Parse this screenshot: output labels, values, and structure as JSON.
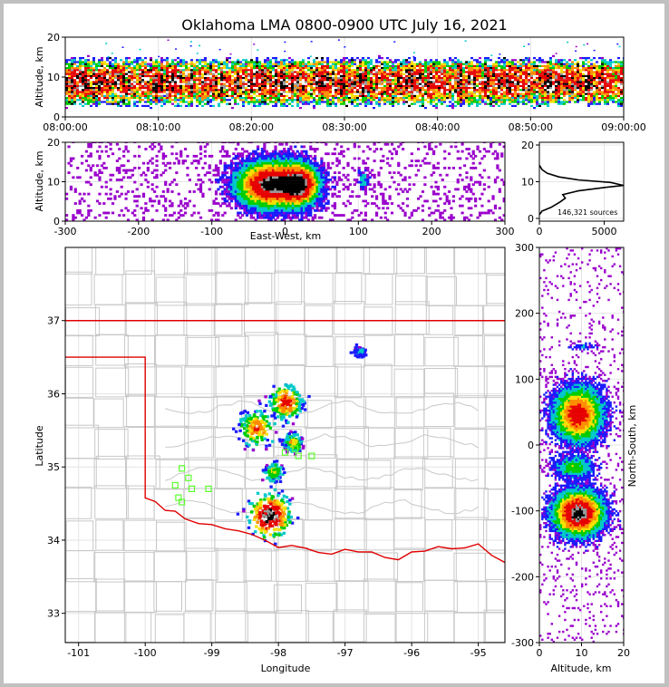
{
  "title": "Oklahoma LMA 0800-0900 UTC July 16, 2021",
  "chart_data": [
    {
      "type": "heatmap",
      "name": "time-altitude",
      "ylabel": "Altitude, km",
      "ylim": [
        0,
        20
      ],
      "yticks": [
        0,
        10,
        20
      ],
      "xticks": [
        "08:00:00",
        "08:10:00",
        "08:20:00",
        "08:30:00",
        "08:40:00",
        "08:50:00",
        "09:00:00"
      ],
      "band_km": [
        2,
        14
      ],
      "core_km": [
        5,
        12
      ]
    },
    {
      "type": "heatmap",
      "name": "eastwest-altitude",
      "xlabel": "East-West, km",
      "ylabel": "Altitude, km",
      "xlim": [
        -300,
        300
      ],
      "ylim": [
        0,
        20
      ],
      "xticks": [
        -300,
        -200,
        -100,
        0,
        100,
        200,
        300
      ],
      "yticks": [
        0,
        10,
        20
      ],
      "clusters": [
        {
          "x_km": -20,
          "z_km": 9,
          "sx": 28,
          "sz": 3.5,
          "intensity": 1
        },
        {
          "x_km": 20,
          "z_km": 9,
          "sx": 15,
          "sz": 3,
          "intensity": 0.8
        },
        {
          "x_km": 105,
          "z_km": 10,
          "sx": 4,
          "sz": 1.5,
          "intensity": 0.25
        }
      ]
    },
    {
      "type": "line",
      "name": "altitude-histogram",
      "xlim": [
        0,
        6500
      ],
      "ylim": [
        0,
        20
      ],
      "xticks": [
        0,
        5000
      ],
      "yticks": [
        0,
        10,
        20
      ],
      "annotation": "146,321 sources",
      "points": [
        [
          0,
          1
        ],
        [
          200,
          2
        ],
        [
          900,
          3
        ],
        [
          1600,
          4.5
        ],
        [
          2000,
          5.5
        ],
        [
          1800,
          6.5
        ],
        [
          3000,
          7.5
        ],
        [
          5200,
          8.5
        ],
        [
          6500,
          9
        ],
        [
          5500,
          9.8
        ],
        [
          3000,
          10.5
        ],
        [
          1500,
          11.3
        ],
        [
          600,
          12.3
        ],
        [
          200,
          13.3
        ],
        [
          0,
          14.5
        ]
      ]
    },
    {
      "type": "heatmap",
      "name": "plan-view-map",
      "xlabel": "Longitude",
      "ylabel": "Latitude",
      "xlim": [
        -101.2,
        -94.6
      ],
      "ylim": [
        32.6,
        38.0
      ],
      "xticks": [
        -101,
        -100,
        -99,
        -98,
        -97,
        -96,
        -95
      ],
      "yticks": [
        33,
        34,
        35,
        36,
        37
      ],
      "clusters": [
        {
          "lon": -98.15,
          "lat": 34.35,
          "s": 0.17,
          "intensity": 1
        },
        {
          "lon": -98.35,
          "lat": 35.55,
          "s": 0.15,
          "intensity": 0.6
        },
        {
          "lon": -97.9,
          "lat": 35.9,
          "s": 0.14,
          "intensity": 0.7
        },
        {
          "lon": -97.8,
          "lat": 35.35,
          "s": 0.08,
          "intensity": 0.5
        },
        {
          "lon": -98.1,
          "lat": 34.95,
          "s": 0.08,
          "intensity": 0.4
        },
        {
          "lon": -96.8,
          "lat": 36.6,
          "s": 0.05,
          "intensity": 0.2
        }
      ],
      "stations": [
        [
          -99.45,
          34.98
        ],
        [
          -99.35,
          34.85
        ],
        [
          -99.55,
          34.75
        ],
        [
          -99.3,
          34.7
        ],
        [
          -99.5,
          34.58
        ],
        [
          -99.45,
          34.52
        ],
        [
          -99.05,
          34.7
        ],
        [
          -97.9,
          35.2
        ],
        [
          -97.75,
          35.25
        ],
        [
          -97.7,
          35.15
        ],
        [
          -97.5,
          35.15
        ]
      ]
    },
    {
      "type": "heatmap",
      "name": "altitude-northsouth",
      "xlabel": "Altitude, km",
      "ylabel": "North-South, km",
      "xlim": [
        0,
        20
      ],
      "ylim": [
        -300,
        300
      ],
      "xticks": [
        0,
        10,
        20
      ],
      "yticks": [
        -300,
        -200,
        -100,
        0,
        100,
        200,
        300
      ],
      "clusters": [
        {
          "z_km": 9,
          "y_km": -105,
          "sz": 3.5,
          "sy": 20,
          "intensity": 1
        },
        {
          "z_km": 9,
          "y_km": 45,
          "sz": 3.5,
          "sy": 25,
          "intensity": 0.75
        },
        {
          "z_km": 8,
          "y_km": -35,
          "sz": 3,
          "sy": 10,
          "intensity": 0.35
        },
        {
          "z_km": 10,
          "y_km": 148,
          "sz": 2,
          "sy": 3,
          "intensity": 0.15
        }
      ]
    }
  ]
}
